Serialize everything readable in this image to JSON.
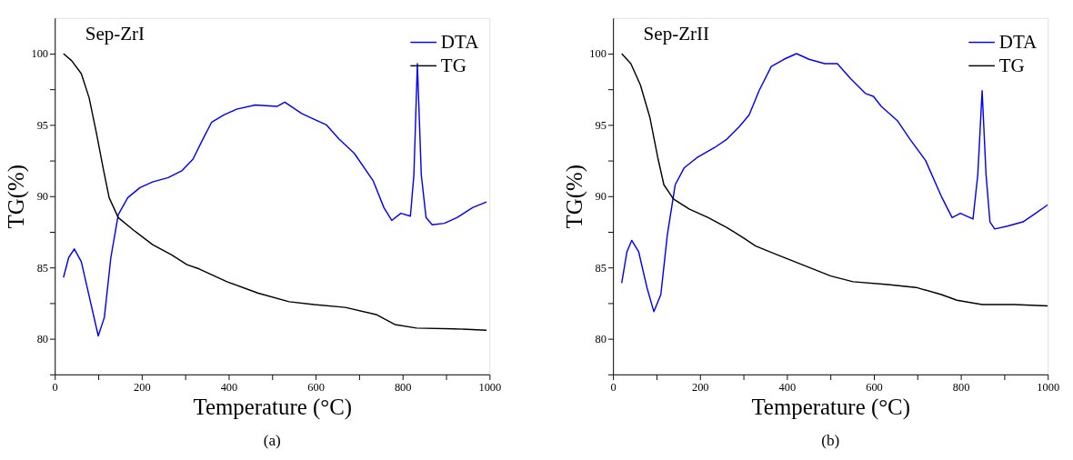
{
  "chart_data": [
    {
      "type": "line",
      "xlabel": "Temperature (°C)",
      "ylabel": "TG(%)",
      "annotations": [
        "Sep-ZrI",
        "(a)"
      ],
      "xlim": [
        0,
        1000
      ],
      "ylim": [
        77.5,
        102.5
      ],
      "xticks": [
        0,
        {
          "value": 100,
          "label": null
        },
        200,
        {
          "value": 300,
          "label": null
        },
        400,
        {
          "value": 500,
          "label": null
        },
        600,
        {
          "value": 700,
          "label": null
        },
        800,
        {
          "value": 900,
          "label": null
        },
        1000
      ],
      "yticks": [
        {
          "value": 77.5,
          "label": null
        },
        80,
        {
          "value": 82.5,
          "label": null
        },
        85,
        {
          "value": 87.5,
          "label": null
        },
        90,
        {
          "value": 92.5,
          "label": null
        },
        95,
        {
          "value": 97.5,
          "label": null
        },
        100
      ],
      "grid": false,
      "legend": "top right",
      "line_style": "solid",
      "marker": "none",
      "series": [
        {
          "name": "DTA",
          "color": "#0000ff",
          "x": [
            20,
            32,
            45,
            61,
            82,
            100,
            114,
            129,
            146,
            168,
            196,
            225,
            261,
            293,
            318,
            339,
            361,
            389,
            418,
            461,
            511,
            529,
            568,
            596,
            625,
            654,
            689,
            732,
            757,
            775,
            796,
            818,
            826,
            834,
            843,
            854,
            868,
            896,
            925,
            961,
            993
          ],
          "values": [
            84.3,
            85.7,
            86.3,
            85.4,
            82.6,
            80.2,
            81.5,
            85.7,
            88.7,
            89.9,
            90.6,
            91.0,
            91.3,
            91.8,
            92.6,
            93.9,
            95.2,
            95.7,
            96.1,
            96.4,
            96.3,
            96.6,
            95.8,
            95.4,
            95.0,
            94.0,
            93.0,
            91.1,
            89.2,
            88.3,
            88.8,
            88.6,
            91.5,
            99.3,
            91.5,
            88.5,
            88.0,
            88.1,
            88.5,
            89.2,
            89.6
          ]
        },
        {
          "name": "TG",
          "color": "#000000",
          "x": [
            20,
            39,
            61,
            79,
            96,
            111,
            125,
            146,
            182,
            225,
            268,
            304,
            332,
            396,
            468,
            539,
            596,
            668,
            739,
            782,
            832,
            918,
            993
          ],
          "values": [
            100.0,
            99.5,
            98.6,
            96.9,
            94.4,
            92.0,
            89.9,
            88.5,
            87.6,
            86.6,
            85.9,
            85.2,
            84.9,
            84.0,
            83.2,
            82.6,
            82.4,
            82.2,
            81.7,
            81.0,
            80.75,
            80.7,
            80.6
          ]
        }
      ]
    },
    {
      "type": "line",
      "xlabel": "Temperature (°C)",
      "ylabel": "TG(%)",
      "annotations": [
        "Sep-ZrII",
        "(b)"
      ],
      "xlim": [
        0,
        1000
      ],
      "ylim": [
        77.5,
        102.5
      ],
      "xticks": [
        0,
        {
          "value": 100,
          "label": null
        },
        200,
        {
          "value": 300,
          "label": null
        },
        400,
        {
          "value": 500,
          "label": null
        },
        600,
        {
          "value": 700,
          "label": null
        },
        800,
        {
          "value": 900,
          "label": null
        },
        1000
      ],
      "yticks": [
        {
          "value": 77.5,
          "label": null
        },
        80,
        {
          "value": 82.5,
          "label": null
        },
        85,
        {
          "value": 87.5,
          "label": null
        },
        90,
        {
          "value": 92.5,
          "label": null
        },
        95,
        {
          "value": 97.5,
          "label": null
        },
        100
      ],
      "grid": false,
      "legend": "top right",
      "line_style": "solid",
      "marker": "none",
      "series": [
        {
          "name": "DTA",
          "color": "#0000ff",
          "x": [
            20,
            32,
            43,
            59,
            78,
            94,
            110,
            125,
            143,
            164,
            193,
            233,
            262,
            291,
            313,
            336,
            364,
            393,
            422,
            451,
            487,
            516,
            545,
            581,
            599,
            617,
            654,
            683,
            719,
            755,
            780,
            799,
            828,
            839,
            849,
            858,
            867,
            878,
            907,
            943,
            972,
            1000
          ],
          "values": [
            83.9,
            86.1,
            86.9,
            86.1,
            83.6,
            81.9,
            83.1,
            87.3,
            90.8,
            92.0,
            92.7,
            93.4,
            94.0,
            94.9,
            95.7,
            97.4,
            99.1,
            99.6,
            100.0,
            99.6,
            99.3,
            99.3,
            98.3,
            97.2,
            97.0,
            96.3,
            95.3,
            94.0,
            92.5,
            90.0,
            88.5,
            88.8,
            88.4,
            91.5,
            97.4,
            91.5,
            88.2,
            87.7,
            87.9,
            88.2,
            88.8,
            89.4
          ]
        },
        {
          "name": "TG",
          "color": "#000000",
          "x": [
            20,
            41,
            63,
            85,
            103,
            117,
            139,
            175,
            219,
            262,
            299,
            328,
            377,
            443,
            501,
            552,
            632,
            697,
            755,
            791,
            849,
            922,
            1000
          ],
          "values": [
            100.0,
            99.3,
            97.8,
            95.5,
            92.7,
            90.8,
            89.8,
            89.1,
            88.5,
            87.8,
            87.1,
            86.5,
            85.9,
            85.1,
            84.4,
            84.0,
            83.8,
            83.6,
            83.1,
            82.7,
            82.4,
            82.4,
            82.3
          ]
        }
      ]
    }
  ]
}
